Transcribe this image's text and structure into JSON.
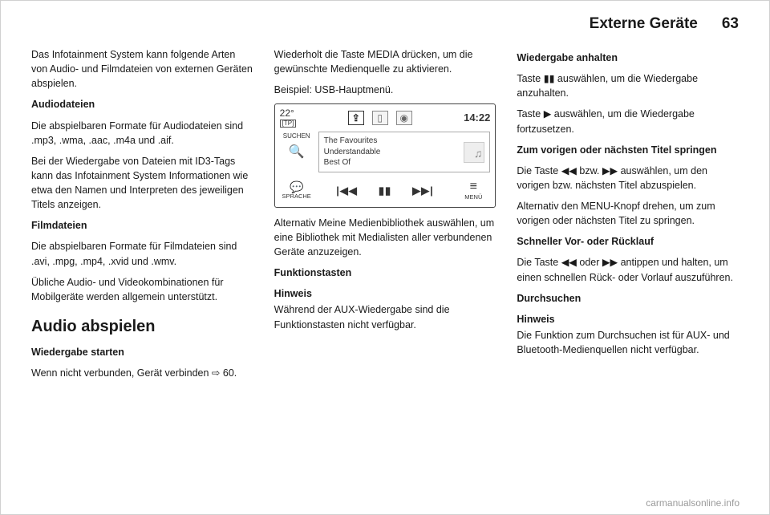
{
  "header": {
    "title": "Externe Geräte",
    "page": "63"
  },
  "col1": {
    "p1": "Das Infotainment System kann fol­gende Arten von Audio- und Filmda­teien von externen Geräten abspie­len.",
    "h_audio": "Audiodateien",
    "p2": "Die abspielbaren Formate für Audio­dateien sind .mp3, .wma, .aac, .m4a und .aif.",
    "p3": "Bei der Wiedergabe von Dateien mit ID3-Tags kann das Infotainment Sys­tem Informationen wie etwa den Na­men und Interpreten des jeweiligen Titels anzeigen.",
    "h_film": "Filmdateien",
    "p4": "Die abspielbaren Formate für Filmda­teien sind .avi, .mpg, .mp4, .xvid und .wmv.",
    "p5": "Übliche Audio- und Videokombinatio­nen für Mobilgeräte werden allgemein unterstützt.",
    "h2": "Audio abspielen",
    "h_start": "Wiedergabe starten",
    "p6a": "Wenn nicht verbunden, Gerät verbin­den ",
    "p6b": "⇨ 60."
  },
  "col2": {
    "p1": "Wiederholt die Taste MEDIA drücken, um die gewünschte Medienquelle zu aktivieren.",
    "p2": "Beispiel: USB-Hauptmenü.",
    "device": {
      "temp": "22°",
      "tp": "[TP]",
      "clock": "14:22",
      "search_label": "SUCHEN",
      "track_line1": "The Favourites",
      "track_line2": "Understandable",
      "track_line3": "Best Of",
      "speak_label": "SPRACHE",
      "menu_label": "MENÜ",
      "prev_icon": "|◀◀",
      "pause_icon": "▮▮",
      "next_icon": "▶▶|"
    },
    "p3": "Alternativ Meine Medienbibliothek auswählen, um eine Bibliothek mit Medialisten aller verbundenen Ge­räte anzuzeigen.",
    "h_func": "Funktionstasten",
    "note_label": "Hinweis",
    "note_text": "Während der AUX-Wiedergabe sind die Funktionstasten nicht verfügbar."
  },
  "col3": {
    "h_pause": "Wiedergabe anhalten",
    "p1": "Taste ▮▮ auswählen, um die Wieder­gabe anzuhalten.",
    "p2": "Taste ▶ auswählen, um die Wieder­gabe fortzusetzen.",
    "h_skip": "Zum vorigen oder nächsten Titel springen",
    "p3": "Die Taste ◀◀ bzw. ▶▶ auswählen, um den vorigen bzw. nächsten Titel ab­zuspielen.",
    "p4": "Alternativ den MENU-Knopf drehen, um zum vorigen oder nächsten Titel zu springen.",
    "h_ff": "Schneller Vor- oder Rücklauf",
    "p5": "Die Taste ◀◀ oder ▶▶ antippen und halten, um einen schnellen Rück- oder Vorlauf auszuführen.",
    "h_browse": "Durchsuchen",
    "note_label": "Hinweis",
    "note_text": "Die Funktion zum Durchsuchen ist für AUX- und Bluetooth-Medienquel­len nicht verfügbar."
  },
  "watermark": "carmanualsonline.info"
}
